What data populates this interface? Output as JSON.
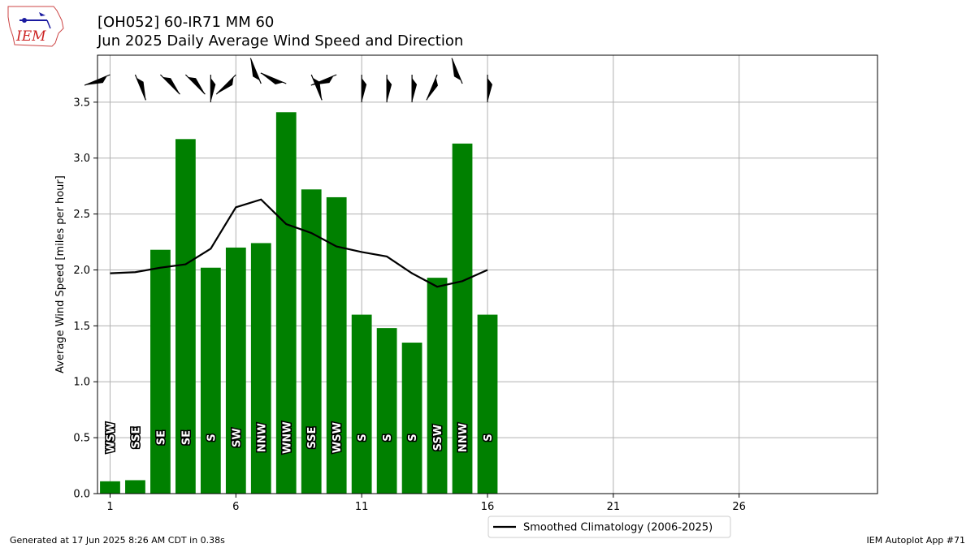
{
  "header": {
    "title_line1": "[OH052] 60-IR71 MM 60",
    "title_line2": "Jun 2025 Daily Average Wind Speed and Direction"
  },
  "logo": {
    "text": "IEM",
    "icon": "iem-iowa-logo"
  },
  "footer": {
    "left": "Generated at 17 Jun 2025 8:26 AM CDT in 0.38s",
    "right": "IEM Autoplot App #71"
  },
  "colors": {
    "bar": "#008000",
    "line": "#000000",
    "grid": "#b0b0b0"
  },
  "chart_data": {
    "type": "bar",
    "title": "Jun 2025 Daily Average Wind Speed and Direction",
    "xlabel": "",
    "ylabel": "Average Wind Speed [miles per hour]",
    "xlim": [
      0.5,
      31.5
    ],
    "ylim": [
      0,
      3.92
    ],
    "xticks": [
      1,
      6,
      11,
      16,
      21,
      26
    ],
    "xtick_labels": [
      "1",
      "6",
      "11",
      "16",
      "21",
      "26"
    ],
    "yticks": [
      0.0,
      0.5,
      1.0,
      1.5,
      2.0,
      2.5,
      3.0,
      3.5
    ],
    "ytick_labels": [
      "0.0",
      "0.5",
      "1.0",
      "1.5",
      "2.0",
      "2.5",
      "3.0",
      "3.5"
    ],
    "grid": true,
    "legend_position": "bottom-center",
    "days": [
      1,
      2,
      3,
      4,
      5,
      6,
      7,
      8,
      9,
      10,
      11,
      12,
      13,
      14,
      15,
      16
    ],
    "values": [
      0.11,
      0.12,
      2.18,
      3.17,
      2.02,
      2.2,
      2.24,
      3.41,
      2.72,
      2.65,
      1.6,
      1.48,
      1.35,
      1.93,
      3.13,
      1.6
    ],
    "directions": [
      "WSW",
      "SSE",
      "SE",
      "SE",
      "S",
      "SW",
      "NNW",
      "WNW",
      "SSE",
      "WSW",
      "S",
      "S",
      "S",
      "SSW",
      "NNW",
      "S"
    ],
    "series": [
      {
        "name": "Smoothed Climatology (2006-2025)",
        "type": "line",
        "x": [
          1,
          2,
          3,
          4,
          5,
          6,
          7,
          8,
          9,
          10,
          11,
          12,
          13,
          14,
          15,
          16
        ],
        "values": [
          1.97,
          1.98,
          2.02,
          2.05,
          2.19,
          2.56,
          2.63,
          2.41,
          2.33,
          2.21,
          2.16,
          2.12,
          1.97,
          1.85,
          1.9,
          2.0
        ]
      }
    ]
  }
}
